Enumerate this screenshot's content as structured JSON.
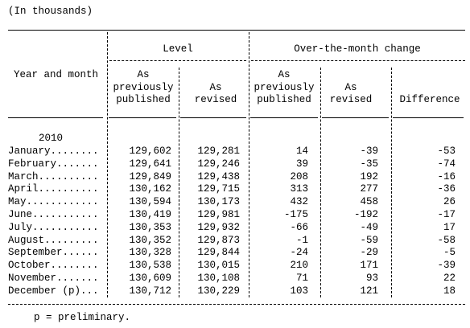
{
  "note": "(In thousands)",
  "header": {
    "stub": "Year and month",
    "groups": [
      "Level",
      "Over-the-month change"
    ],
    "columns": [
      [
        "As",
        "previously",
        "published"
      ],
      [
        "As",
        "revised"
      ],
      [
        "As",
        "previously",
        "published"
      ],
      [
        "As",
        "revised"
      ],
      [
        "Difference"
      ]
    ]
  },
  "year": "2010",
  "rows": [
    {
      "label": "January........",
      "values": [
        "129,602",
        "129,281",
        "14",
        "-39",
        "-53"
      ]
    },
    {
      "label": "February.......",
      "values": [
        "129,641",
        "129,246",
        "39",
        "-35",
        "-74"
      ]
    },
    {
      "label": "March..........",
      "values": [
        "129,849",
        "129,438",
        "208",
        "192",
        "-16"
      ]
    },
    {
      "label": "April..........",
      "values": [
        "130,162",
        "129,715",
        "313",
        "277",
        "-36"
      ]
    },
    {
      "label": "May............",
      "values": [
        "130,594",
        "130,173",
        "432",
        "458",
        "26"
      ]
    },
    {
      "label": "June...........",
      "values": [
        "130,419",
        "129,981",
        "-175",
        "-192",
        "-17"
      ]
    },
    {
      "label": "July...........",
      "values": [
        "130,353",
        "129,932",
        "-66",
        "-49",
        "17"
      ]
    },
    {
      "label": "August.........",
      "values": [
        "130,352",
        "129,873",
        "-1",
        "-59",
        "-58"
      ]
    },
    {
      "label": "September......",
      "values": [
        "130,328",
        "129,844",
        "-24",
        "-29",
        "-5"
      ]
    },
    {
      "label": "October........",
      "values": [
        "130,538",
        "130,015",
        "210",
        "171",
        "-39"
      ]
    },
    {
      "label": "November.......",
      "values": [
        "130,609",
        "130,108",
        "71",
        "93",
        "22"
      ]
    },
    {
      "label": "December (p)...",
      "values": [
        "130,712",
        "130,229",
        "103",
        "121",
        "18"
      ]
    }
  ],
  "footnote": "p = preliminary."
}
